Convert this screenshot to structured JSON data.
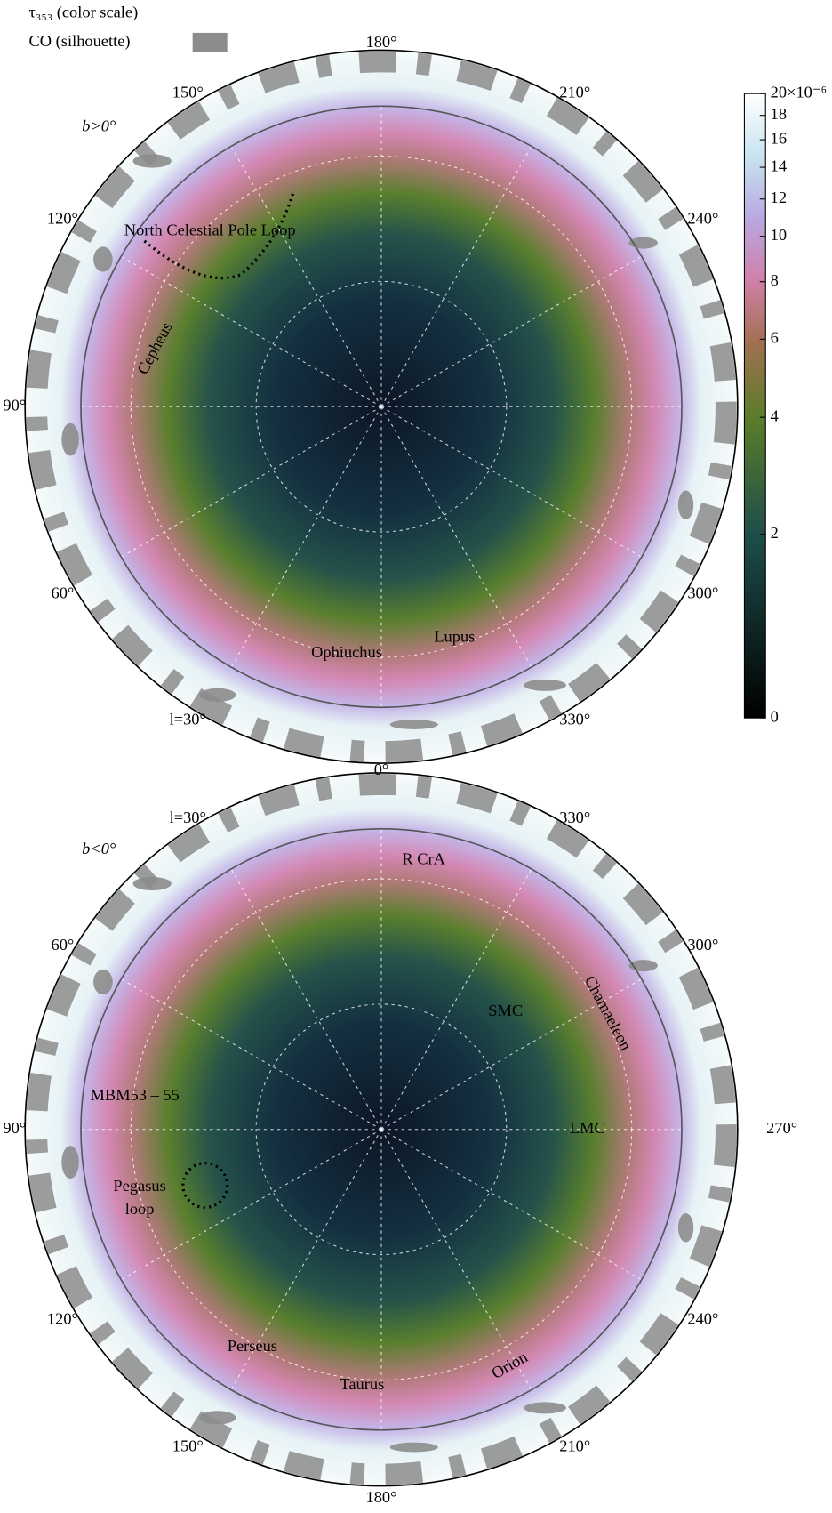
{
  "legend": {
    "color_scale": "τ₃₅₃ (color scale)",
    "silhouette": "CO (silhouette)"
  },
  "colorbar": {
    "ticks": [
      0,
      2,
      4,
      6,
      8,
      10,
      12,
      14,
      16,
      18,
      {
        "value": 20,
        "label": "20×10⁻⁶"
      }
    ]
  },
  "maps": [
    {
      "hemisphere": "b>0°",
      "longitude_labels": [
        "180°",
        "210°",
        "240°",
        "300°",
        "330°",
        "l=30°",
        "60°",
        "90°",
        "120°",
        "150°"
      ],
      "annotations": [
        "North Celestial Pole Loop",
        "Cepheus",
        "Ophiuchus",
        "Lupus"
      ]
    },
    {
      "hemisphere": "b<0°",
      "longitude_labels": [
        "0°",
        "330°",
        "300°",
        "270°",
        "240°",
        "210°",
        "180°",
        "150°",
        "120°",
        "90°",
        "60°",
        "l=30°"
      ],
      "annotations": [
        "R CrA",
        "Chamaeleon",
        "SMC",
        "LMC",
        "MBM53 – 55",
        "Pegasus",
        "loop",
        "Perseus",
        "Taurus",
        "Orion"
      ]
    }
  ]
}
